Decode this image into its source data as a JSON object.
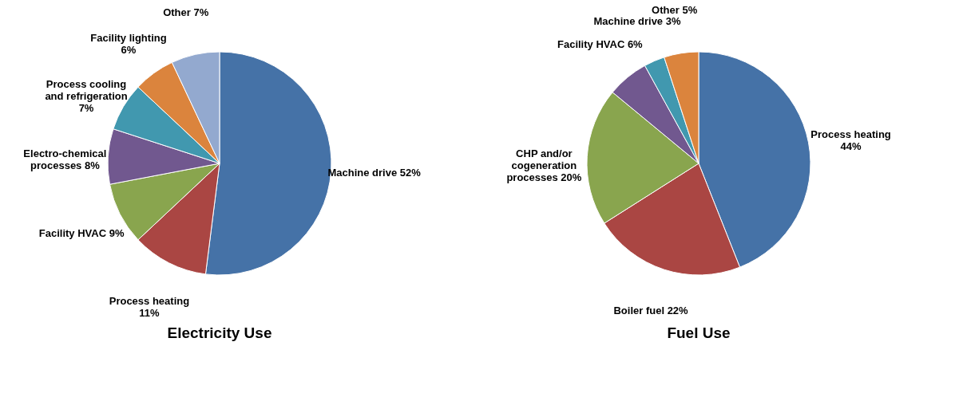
{
  "chart_data": [
    {
      "type": "pie",
      "title": "Electricity Use",
      "categories": [
        "Machine drive",
        "Process heating",
        "Facility HVAC",
        "Electro-chemical processes",
        "Process cooling and refrigeration",
        "Facility lighting",
        "Other"
      ],
      "values": [
        52,
        11,
        9,
        8,
        7,
        6,
        7
      ],
      "value_labels": [
        "52%",
        "11%",
        "9%",
        "8%",
        "7%",
        "6%",
        "7%"
      ],
      "colors": [
        "#4572a7",
        "#aa4643",
        "#89a54e",
        "#71588f",
        "#4198af",
        "#db843d",
        "#93a9cf"
      ]
    },
    {
      "type": "pie",
      "title": "Fuel Use",
      "categories": [
        "Process heating",
        "Boiler fuel",
        "CHP and/or cogeneration processes",
        "Facility HVAC",
        "Machine drive",
        "Other"
      ],
      "values": [
        44,
        22,
        20,
        6,
        3,
        5
      ],
      "value_labels": [
        "44%",
        "22%",
        "20%",
        "6%",
        "3%",
        "5%"
      ],
      "colors": [
        "#4572a7",
        "#aa4643",
        "#89a54e",
        "#71588f",
        "#4198af",
        "#db843d"
      ]
    }
  ]
}
